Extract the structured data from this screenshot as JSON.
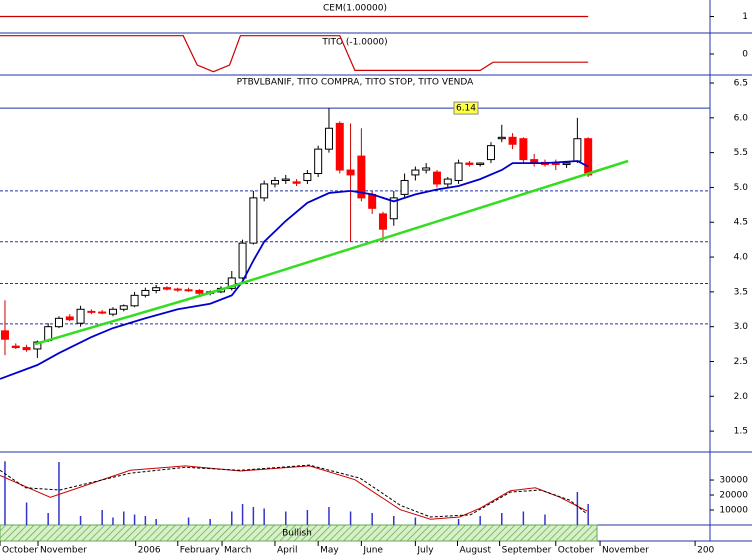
{
  "chart_data": [
    {
      "type": "line",
      "title": "CEM(1.00000)",
      "x": [
        -0.46,
        54
      ],
      "values": [
        1,
        1
      ],
      "color": "#cc0000",
      "ylim": [
        0,
        2
      ],
      "yticks": [
        1
      ]
    },
    {
      "type": "line",
      "title": "TITO (-1.0000)",
      "x": [
        -0.46,
        16.5,
        17.8,
        19.3,
        20.8,
        21.8,
        31.0,
        32.4,
        44.0,
        45.2,
        54
      ],
      "values": [
        1,
        1,
        -0.6,
        -0.97,
        -0.6,
        1,
        1,
        -0.9,
        -0.9,
        -0.45,
        -0.45
      ],
      "color": "#cc0000",
      "ylim": [
        -1.15,
        1.15
      ],
      "yticks": [
        0
      ]
    },
    {
      "type": "candlestick",
      "title": "PTBVLBANIF, TITO COMPRA, TITO STOP, TITO VENDA",
      "x": [
        0,
        1,
        2,
        3,
        4,
        5,
        6,
        7,
        8,
        9,
        10,
        11,
        12,
        13,
        14,
        15,
        16,
        17,
        18,
        19,
        20,
        21,
        22,
        23,
        24,
        25,
        26,
        27,
        28,
        29,
        30,
        31,
        32,
        33,
        34,
        35,
        36,
        37,
        38,
        39,
        40,
        41,
        42,
        43,
        44,
        45,
        46,
        47,
        48,
        49,
        50,
        51,
        52,
        53,
        54
      ],
      "open": [
        2.94,
        2.72,
        2.7,
        2.68,
        2.8,
        3.0,
        3.14,
        3.05,
        3.22,
        3.21,
        3.18,
        3.25,
        3.3,
        3.45,
        3.52,
        3.56,
        3.54,
        3.53,
        3.52,
        3.48,
        3.5,
        3.55,
        3.7,
        4.2,
        4.85,
        5.05,
        5.1,
        5.08,
        5.1,
        5.2,
        5.55,
        5.92,
        5.25,
        5.45,
        4.9,
        4.62,
        4.55,
        4.9,
        5.18,
        5.25,
        5.22,
        5.05,
        5.1,
        5.35,
        5.33,
        5.4,
        5.7,
        5.72,
        5.7,
        5.4,
        5.36,
        5.35,
        5.33,
        5.38,
        5.7
      ],
      "high": [
        3.38,
        2.76,
        2.74,
        2.8,
        3.05,
        3.15,
        3.18,
        3.3,
        3.25,
        3.24,
        3.28,
        3.32,
        3.5,
        3.56,
        3.6,
        3.58,
        3.56,
        3.56,
        3.54,
        3.52,
        3.58,
        3.8,
        4.25,
        4.95,
        5.1,
        5.15,
        5.18,
        5.12,
        5.25,
        5.6,
        6.14,
        5.95,
        5.92,
        5.85,
        4.95,
        4.65,
        4.95,
        5.2,
        5.3,
        5.35,
        5.25,
        5.15,
        5.4,
        5.38,
        5.36,
        5.65,
        5.9,
        5.78,
        5.72,
        5.48,
        5.4,
        5.4,
        5.36,
        6.0,
        5.72
      ],
      "low": [
        2.59,
        2.68,
        2.64,
        2.55,
        2.78,
        2.98,
        3.08,
        3.0,
        3.18,
        3.18,
        3.15,
        3.22,
        3.28,
        3.42,
        3.48,
        3.52,
        3.5,
        3.5,
        3.45,
        3.45,
        3.48,
        3.52,
        3.68,
        4.18,
        4.8,
        5.0,
        5.05,
        5.02,
        5.05,
        5.15,
        5.5,
        5.2,
        4.22,
        4.8,
        4.62,
        4.22,
        4.45,
        4.85,
        5.1,
        5.2,
        5.0,
        5.0,
        5.05,
        5.3,
        5.3,
        5.35,
        5.65,
        5.55,
        5.35,
        5.3,
        5.3,
        5.25,
        5.28,
        5.35,
        5.15
      ],
      "close": [
        2.82,
        2.7,
        2.67,
        2.78,
        3.0,
        3.12,
        3.1,
        3.25,
        3.21,
        3.2,
        3.25,
        3.3,
        3.45,
        3.52,
        3.56,
        3.54,
        3.53,
        3.52,
        3.48,
        3.5,
        3.55,
        3.7,
        4.2,
        4.85,
        5.05,
        5.1,
        5.12,
        5.06,
        5.2,
        5.55,
        5.85,
        5.25,
        5.18,
        4.85,
        4.7,
        4.4,
        4.85,
        5.1,
        5.25,
        5.28,
        5.05,
        5.12,
        5.35,
        5.33,
        5.35,
        5.6,
        5.72,
        5.62,
        5.4,
        5.35,
        5.33,
        5.33,
        5.35,
        5.7,
        5.18
      ],
      "up_color": "#ffffff",
      "down_color": "#ff0000",
      "series": [
        {
          "type": "line",
          "color": "#0000cc",
          "x": [
            -0.46,
            3,
            5,
            8,
            10,
            13,
            16,
            19,
            21,
            22,
            23,
            24,
            26,
            28,
            30,
            32,
            34,
            36,
            38,
            40,
            42,
            44,
            46,
            47,
            50,
            53,
            54
          ],
          "values": [
            2.25,
            2.45,
            2.62,
            2.85,
            2.98,
            3.12,
            3.25,
            3.33,
            3.45,
            3.65,
            3.95,
            4.22,
            4.52,
            4.78,
            4.92,
            4.95,
            4.9,
            4.8,
            4.9,
            4.97,
            5.02,
            5.12,
            5.25,
            5.35,
            5.35,
            5.38,
            5.3
          ]
        },
        {
          "type": "line",
          "color": "#33dd22",
          "x": [
            2.8,
            20.8,
            57.7
          ],
          "values": [
            2.75,
            3.57,
            5.38
          ]
        }
      ],
      "levels": [
        6.14,
        4.95,
        4.22,
        3.62,
        3.04
      ],
      "ylim": [
        1.2,
        6.615
      ],
      "yticks": [
        1.5,
        2.0,
        2.5,
        3.0,
        3.5,
        4.0,
        4.5,
        5.0,
        5.5,
        6.0,
        6.5
      ]
    },
    {
      "type": "bar",
      "annotation": "Bullish",
      "x": [
        0,
        2,
        4,
        5,
        7,
        9,
        10,
        11,
        12,
        13,
        14,
        17,
        19,
        21,
        22,
        23,
        24,
        26,
        28,
        30,
        32,
        34,
        36,
        38,
        42,
        44,
        46,
        48,
        50,
        53,
        54
      ],
      "values": [
        42500,
        15000,
        8000,
        42000,
        6000,
        10000,
        5000,
        9000,
        7000,
        6000,
        4000,
        5000,
        4000,
        9000,
        14000,
        12000,
        11000,
        9000,
        10000,
        12000,
        9000,
        8000,
        6000,
        5000,
        4000,
        6000,
        8000,
        9000,
        7000,
        22000,
        14000
      ],
      "color": "#3333cc",
      "series": [
        {
          "type": "line",
          "axis": "y2",
          "color": "#cc0000",
          "x": [
            -0.46,
            4.2,
            11.6,
            16.7,
            21.8,
            28.2,
            32.4,
            36.6,
            39.4,
            42.1,
            44,
            46.8,
            49.1,
            51.4,
            53.9
          ],
          "values": [
            68,
            38,
            75,
            81,
            74,
            81,
            62,
            21,
            8,
            11,
            23,
            47,
            51,
            38,
            19
          ]
        },
        {
          "type": "line",
          "axis": "y2",
          "color": "#000000",
          "dashed": true,
          "x": [
            -0.46,
            1.9,
            5.1,
            11.6,
            16.7,
            21.8,
            28.2,
            32.9,
            36.6,
            39.4,
            43.1,
            46.8,
            49.6,
            52.3,
            53.9
          ],
          "values": [
            75,
            51,
            48,
            71,
            79,
            75,
            82,
            64,
            27,
            11,
            14,
            45,
            48,
            34,
            15
          ]
        }
      ],
      "ylim": [
        0,
        48700
      ],
      "yticks": [
        10000,
        20000,
        30000
      ],
      "y2lim": [
        0,
        100
      ],
      "xlim": [
        -0.46,
        65.28
      ],
      "xticks": [
        {
          "value": -0.46,
          "label": "October"
        },
        {
          "value": 3.06,
          "label": "November"
        },
        {
          "value": 12.1,
          "label": "2006"
        },
        {
          "value": 16,
          "label": "February"
        },
        {
          "value": 20.1,
          "label": "March"
        },
        {
          "value": 25,
          "label": "April"
        },
        {
          "value": 29,
          "label": "May"
        },
        {
          "value": 33,
          "label": "June"
        },
        {
          "value": 38,
          "label": "July"
        },
        {
          "value": 41.9,
          "label": "August"
        },
        {
          "value": 45.8,
          "label": "September"
        },
        {
          "value": 51,
          "label": "October"
        },
        {
          "value": 55.1,
          "label": "November"
        },
        {
          "value": 63.9,
          "label": "200"
        }
      ]
    }
  ]
}
